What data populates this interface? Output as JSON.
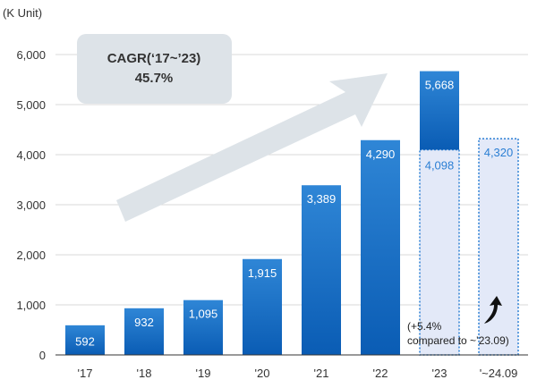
{
  "chart_data": {
    "type": "bar",
    "unit_label": "(K Unit)",
    "categories": [
      "'17",
      "'18",
      "'19",
      "'20",
      "'21",
      "'22",
      "'23",
      "'~24.09"
    ],
    "values": [
      592,
      932,
      1095,
      1915,
      3389,
      4290,
      5668,
      4320
    ],
    "value_labels": [
      "592",
      "932",
      "1,095",
      "1,915",
      "3,389",
      "4,290",
      "5,668",
      "4,320"
    ],
    "partial": {
      "category": "'23",
      "value": 4098,
      "label": "4,098"
    },
    "ylim": [
      0,
      6000
    ],
    "yticks": [
      0,
      1000,
      2000,
      3000,
      4000,
      5000,
      6000
    ],
    "ytick_labels": [
      "0",
      "1,000",
      "2,000",
      "3,000",
      "4,000",
      "5,000",
      "6,000"
    ],
    "grid": true,
    "annotations": {
      "cagr_line1": "CAGR(‘17~’23)",
      "cagr_line2": "45.7%",
      "note_line1": "(+5.4%",
      "note_line2": "compared to ~’23.09)"
    },
    "colors": {
      "bar_top": "#2f86d6",
      "bar_bottom": "#0a5cb4",
      "bar_label": "#ffffff",
      "dashed_fill": "#e3e9f8",
      "dashed_border": "#2b7fd4",
      "dashed_label": "#2b7fd4",
      "cagr_box": "#dde3e8",
      "arrow": "#dde3e8",
      "grid": "#d9d9d9",
      "axis": "#333333"
    }
  }
}
